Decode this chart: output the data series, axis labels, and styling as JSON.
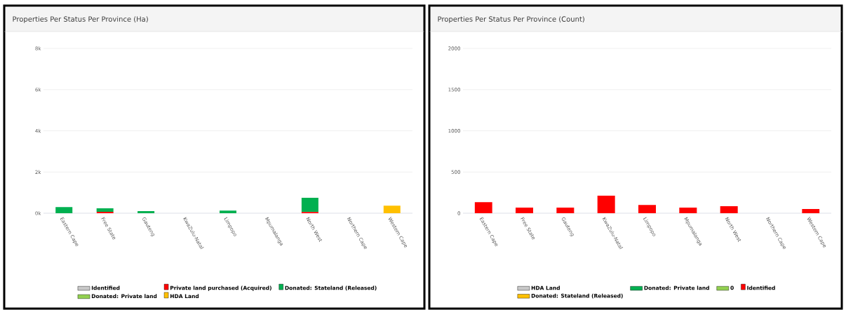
{
  "chart_data": [
    {
      "type": "bar",
      "title": "Properties Per Status Per Province (Ha)",
      "stacked": true,
      "categories": [
        "Eastern Cape",
        "Free State",
        "Gauteng",
        "KwaZulu-Natal",
        "Limpopo",
        "Mpumalanga",
        "North West",
        "Northern Cape",
        "Western Cape"
      ],
      "series": [
        {
          "name": "Identified",
          "color": "#c8c8c8",
          "values": [
            null,
            null,
            null,
            null,
            null,
            null,
            null,
            null,
            null
          ]
        },
        {
          "name": "Private land purchased (Acquired)",
          "color": "#ff0000",
          "values": [
            null,
            70,
            null,
            null,
            null,
            null,
            60,
            null,
            null
          ]
        },
        {
          "name": "Donated: Stateland (Released)",
          "color": "#00b050",
          "values": [
            300,
            170,
            100,
            null,
            130,
            null,
            690,
            null,
            null
          ]
        },
        {
          "name": "Donated: Private land",
          "color": "#92d050",
          "values": [
            null,
            null,
            null,
            null,
            null,
            null,
            null,
            null,
            null
          ]
        },
        {
          "name": "HDA Land",
          "color": "#ffc000",
          "values": [
            null,
            null,
            null,
            null,
            null,
            null,
            null,
            null,
            370
          ]
        }
      ],
      "ylim": [
        0,
        8000
      ],
      "yticks": [
        {
          "value": 0,
          "label": "0k"
        },
        {
          "value": 2000,
          "label": "2k"
        },
        {
          "value": 4000,
          "label": "4k"
        },
        {
          "value": 6000,
          "label": "6k"
        },
        {
          "value": 8000,
          "label": "8k"
        }
      ],
      "grid": "y",
      "legend": "bottom"
    },
    {
      "type": "bar",
      "title": "Properties Per Status Per Province (Count)",
      "stacked": true,
      "categories": [
        "Eastern Cape",
        "Free State",
        "Gauteng",
        "KwaZulu-Natal",
        "Limpopo",
        "Mpumalanga",
        "North West",
        "Northern Cape",
        "Western Cape"
      ],
      "series": [
        {
          "name": "HDA Land",
          "color": "#c8c8c8",
          "values": [
            null,
            null,
            null,
            null,
            null,
            null,
            null,
            null,
            null
          ]
        },
        {
          "name": "Donated: Private land",
          "color": "#00b050",
          "values": [
            null,
            null,
            null,
            null,
            null,
            null,
            null,
            null,
            null
          ]
        },
        {
          "name": "0",
          "color": "#92d050",
          "values": [
            null,
            null,
            null,
            null,
            null,
            null,
            null,
            null,
            null
          ]
        },
        {
          "name": "Identified",
          "color": "#ff0000",
          "values": [
            135,
            68,
            68,
            212,
            100,
            68,
            85,
            null,
            50
          ]
        },
        {
          "name": "Donated: Stateland (Released)",
          "color": "#ffc000",
          "values": [
            null,
            null,
            null,
            null,
            null,
            null,
            null,
            null,
            null
          ]
        }
      ],
      "ylim": [
        0,
        2000
      ],
      "yticks": [
        0,
        500,
        1000,
        1500,
        2000
      ],
      "grid": "y",
      "legend": "bottom"
    }
  ]
}
